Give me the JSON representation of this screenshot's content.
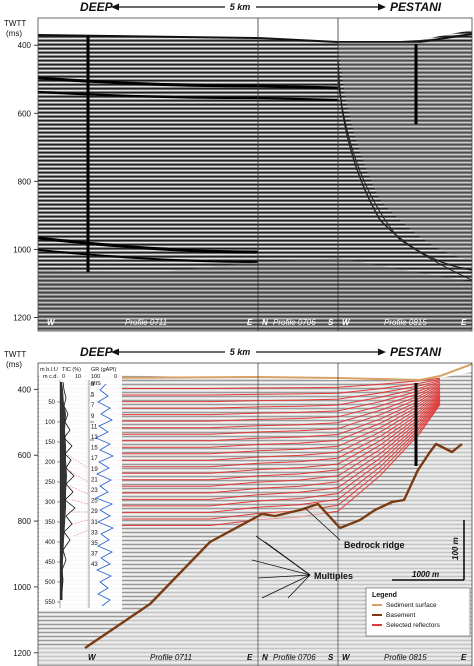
{
  "top_panel": {
    "header": {
      "left": "DEEP",
      "scale": "5 km",
      "right": "PESTANI"
    },
    "axis": {
      "title_line1": "TWTT",
      "title_line2": "(ms)",
      "ticks": [
        "400",
        "600",
        "800",
        "1000",
        "1200"
      ],
      "tick_values": [
        400,
        600,
        800,
        1000,
        1200
      ],
      "range": [
        320,
        1240
      ]
    },
    "footer": [
      {
        "dir_left": "W",
        "profile": "Profile 0711",
        "dir_right": "E"
      },
      {
        "dir_left": "N",
        "profile": "Profile 0706",
        "dir_right": "S"
      },
      {
        "dir_left": "W",
        "profile": "Profile 0815",
        "dir_right": "E"
      }
    ]
  },
  "bottom_panel": {
    "header": {
      "left": "DEEP",
      "scale": "5 km",
      "right": "PESTANI"
    },
    "axis": {
      "title_line1": "TWTT",
      "title_line2": "(ms)",
      "ticks": [
        "400",
        "600",
        "800",
        "1000",
        "1200"
      ],
      "tick_values": [
        400,
        600,
        800,
        1000,
        1200
      ],
      "range": [
        320,
        1240
      ]
    },
    "core_log": {
      "depth_title_line1": "m b.l.f./",
      "depth_title_line2": "m c.d.",
      "depth_ticks": [
        "50",
        "100",
        "150",
        "200",
        "250",
        "300",
        "350",
        "400",
        "450",
        "500",
        "550"
      ],
      "depth_values": [
        50,
        100,
        150,
        200,
        250,
        300,
        350,
        400,
        450,
        500,
        550
      ],
      "tic_title": "TIC (%)",
      "tic_scale": [
        "0",
        "10"
      ],
      "gr_title": "GR (gAPI)",
      "gr_scale": [
        "100",
        "0"
      ],
      "mis_title": "MIS",
      "mis_labels": [
        "3",
        "5",
        "7",
        "9",
        "11",
        "13",
        "15",
        "17",
        "19",
        "21",
        "23",
        "25",
        "29",
        "31",
        "33",
        "35",
        "37",
        "43"
      ]
    },
    "annotations": {
      "bedrock": "Bedrock ridge",
      "multiples": "Multiples",
      "vscale": "100 m",
      "hscale": "1000 m"
    },
    "legend": {
      "title": "Legend",
      "items": [
        {
          "label": "Sediment surface",
          "color": "#d9a066"
        },
        {
          "label": "Basement",
          "color": "#7a3b12"
        },
        {
          "label": "Selected reflectors",
          "color": "#e23a3a"
        }
      ]
    },
    "footer": [
      {
        "dir_left": "W",
        "profile": "Profile 0711",
        "dir_right": "E"
      },
      {
        "dir_left": "N",
        "profile": "Profile 0706",
        "dir_right": "S"
      },
      {
        "dir_left": "W",
        "profile": "Profile 0815",
        "dir_right": "E"
      }
    ]
  }
}
